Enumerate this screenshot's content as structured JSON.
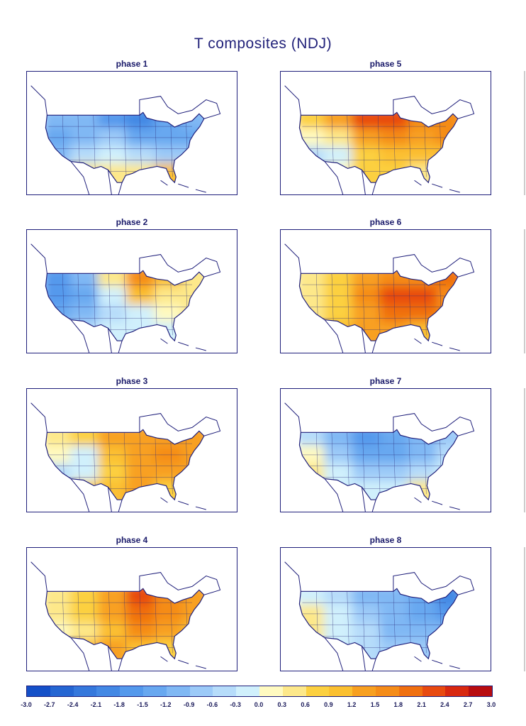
{
  "title": "T composites (NDJ)",
  "colorbar": {
    "labels": [
      "-3.0",
      "-2.7",
      "-2.4",
      "-2.1",
      "-1.8",
      "-1.5",
      "-1.2",
      "-0.9",
      "-0.6",
      "-0.3",
      "0.0",
      "0.3",
      "0.6",
      "0.9",
      "1.2",
      "1.5",
      "1.8",
      "2.1",
      "2.4",
      "2.7",
      "3.0"
    ],
    "colors": [
      "#1450c8",
      "#2566d2",
      "#3578dc",
      "#4388e4",
      "#5499ec",
      "#68a8f0",
      "#80b8f4",
      "#9ccaf8",
      "#b6dcfa",
      "#d0f0fc",
      "#fffac0",
      "#fde88a",
      "#fcd040",
      "#fbc030",
      "#f8a020",
      "#f58c18",
      "#f07010",
      "#e84a10",
      "#d82810",
      "#b80c10"
    ],
    "min": -3.0,
    "step": 0.3
  },
  "panels": [
    {
      "label": "phase 1",
      "grid": [
        [
          -1.2,
          -1.2,
          -1.8,
          -2.1,
          -1.5,
          -1.2
        ],
        [
          -1.5,
          -1.2,
          -0.9,
          -1.5,
          -1.5,
          -1.5
        ],
        [
          -1.2,
          -0.6,
          -0.3,
          -0.6,
          -0.9,
          -0.9
        ],
        [
          -0.6,
          0.3,
          0.3,
          0.3,
          0.9,
          0.3
        ]
      ]
    },
    {
      "label": "phase 5",
      "grid": [
        [
          0.6,
          1.2,
          2.1,
          2.1,
          1.5,
          1.5
        ],
        [
          0.0,
          0.3,
          1.2,
          1.5,
          1.2,
          1.5
        ],
        [
          -0.6,
          -0.3,
          0.6,
          0.9,
          0.9,
          0.9
        ],
        [
          -0.6,
          0.0,
          0.6,
          0.6,
          0.3,
          -0.3
        ]
      ]
    },
    {
      "label": "phase 2",
      "grid": [
        [
          -1.8,
          -1.2,
          0.3,
          1.5,
          0.9,
          0.3
        ],
        [
          -1.8,
          -1.5,
          -0.3,
          0.9,
          0.3,
          0.3
        ],
        [
          -1.5,
          -1.2,
          -0.6,
          -0.3,
          0.0,
          0.3
        ],
        [
          -0.9,
          -0.6,
          -0.3,
          -0.3,
          -0.3,
          0.0
        ]
      ]
    },
    {
      "label": "phase 6",
      "grid": [
        [
          0.3,
          0.6,
          1.2,
          1.5,
          1.5,
          1.8
        ],
        [
          0.3,
          0.6,
          1.5,
          2.1,
          2.1,
          1.5
        ],
        [
          0.3,
          0.6,
          1.2,
          1.8,
          1.8,
          1.5
        ],
        [
          0.3,
          0.9,
          1.2,
          1.2,
          0.9,
          0.6
        ]
      ]
    },
    {
      "label": "phase 3",
      "grid": [
        [
          0.3,
          0.6,
          1.2,
          1.2,
          1.2,
          1.2
        ],
        [
          0.0,
          -0.3,
          0.9,
          1.2,
          1.5,
          1.2
        ],
        [
          -0.6,
          -0.3,
          0.6,
          1.2,
          1.2,
          1.2
        ],
        [
          -0.3,
          0.6,
          0.9,
          1.2,
          0.6,
          0.6
        ]
      ]
    },
    {
      "label": "phase 7",
      "grid": [
        [
          -0.6,
          -1.2,
          -1.8,
          -1.5,
          -1.2,
          -0.9
        ],
        [
          0.0,
          -0.9,
          -1.5,
          -1.5,
          -1.2,
          -0.6
        ],
        [
          0.3,
          -0.3,
          -0.9,
          -0.9,
          -0.6,
          -0.3
        ],
        [
          0.3,
          -0.3,
          -0.3,
          -0.3,
          0.3,
          0.0
        ]
      ]
    },
    {
      "label": "phase 4",
      "grid": [
        [
          0.3,
          0.6,
          1.2,
          2.1,
          1.5,
          1.2
        ],
        [
          0.3,
          0.6,
          1.2,
          1.8,
          1.5,
          1.2
        ],
        [
          0.0,
          0.3,
          0.9,
          1.5,
          1.2,
          0.9
        ],
        [
          0.3,
          0.9,
          1.2,
          0.9,
          0.6,
          0.3
        ]
      ]
    },
    {
      "label": "phase 8",
      "grid": [
        [
          -0.3,
          -0.6,
          -1.2,
          -1.2,
          -1.5,
          -2.1
        ],
        [
          0.3,
          -0.3,
          -0.9,
          -1.2,
          -1.5,
          -1.8
        ],
        [
          0.3,
          -0.3,
          -0.6,
          -1.2,
          -1.2,
          -1.2
        ],
        [
          0.0,
          -0.3,
          -0.6,
          -0.9,
          -0.9,
          -0.6
        ]
      ]
    }
  ]
}
